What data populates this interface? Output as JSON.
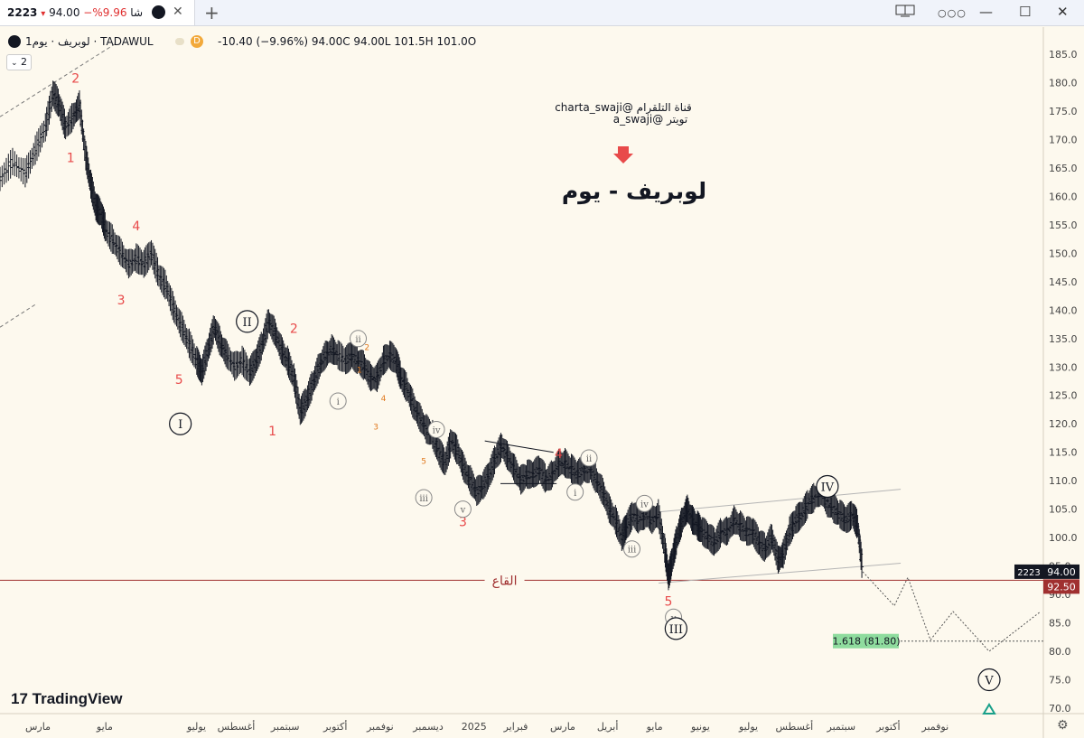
{
  "tab": {
    "title": "شا 9.96%− 94.00 ▾ 2223",
    "pct_label": "9.96%−",
    "price": "94.00",
    "arrow": "▾",
    "code": "2223",
    "prefix": "شا"
  },
  "window": {
    "plus": "+",
    "close_tab": "✕",
    "layout_icon": "layout-icon",
    "more": "○○○",
    "minimize": "—",
    "maximize": "☐",
    "close": "✕"
  },
  "header": {
    "symbol": "لوبريف · يوم1 · TADAWUL",
    "badge": "D",
    "ohlc": "-10.40 (−9.96%) 94.00C 94.00L 101.5H 101.0O",
    "layers": "2"
  },
  "annotations": {
    "channel_line1": "charta_swaji@ قناة التلقرام",
    "channel_line2": "a_swaji@ تويتر",
    "main_title": "لوبريف - يوم",
    "support_label": "القاع",
    "fib_label": "1.618 (81.80)"
  },
  "branding": {
    "logo_text": "TradingView"
  },
  "colors": {
    "accent": "#e84a4a",
    "up": "#131722",
    "support": "#a03030",
    "fib_bg": "#8fdc9e",
    "price_tag": "#131722"
  },
  "chart_data": {
    "type": "line",
    "ylim": [
      70,
      185
    ],
    "yticks": [
      185,
      180,
      175,
      170,
      165,
      160,
      155,
      150,
      145,
      140,
      135,
      130,
      125,
      120,
      115,
      110,
      105,
      100,
      95,
      90,
      85,
      80,
      75,
      70
    ],
    "ytick_labels": [
      "185.0",
      "180.0",
      "175.0",
      "170.0",
      "165.0",
      "160.0",
      "155.0",
      "150.0",
      "145.0",
      "140.0",
      "135.0",
      "130.0",
      "125.0",
      "120.0",
      "115.0",
      "110.0",
      "105.0",
      "100.0",
      "95.0",
      "90.0",
      "85.0",
      "80.0",
      "75.0",
      "70.0"
    ],
    "xtick_labels": [
      "مارس",
      "مايو",
      "يوليو",
      "أغسطس",
      "سبتمبر",
      "أكتوبر",
      "نوفمبر",
      "ديسمبر",
      "2025",
      "فبراير",
      "مارس",
      "أبريل",
      "مايو",
      "يونيو",
      "يوليو",
      "أغسطس",
      "سبتمبر",
      "أكتوبر",
      "نوفمبر"
    ],
    "xtick_pos": [
      0.0,
      0.064,
      0.152,
      0.19,
      0.237,
      0.285,
      0.328,
      0.374,
      0.418,
      0.458,
      0.503,
      0.546,
      0.591,
      0.635,
      0.681,
      0.725,
      0.77,
      0.815,
      0.86
    ],
    "price_path": [
      [
        0.0,
        163
      ],
      [
        0.01,
        166
      ],
      [
        0.02,
        164
      ],
      [
        0.028,
        168
      ],
      [
        0.036,
        172
      ],
      [
        0.042,
        178
      ],
      [
        0.047,
        176
      ],
      [
        0.052,
        172
      ],
      [
        0.058,
        174
      ],
      [
        0.063,
        176
      ],
      [
        0.068,
        167
      ],
      [
        0.072,
        162
      ],
      [
        0.076,
        158
      ],
      [
        0.08,
        157
      ],
      [
        0.084,
        154
      ],
      [
        0.09,
        152
      ],
      [
        0.096,
        150
      ],
      [
        0.102,
        148
      ],
      [
        0.108,
        149
      ],
      [
        0.114,
        148
      ],
      [
        0.12,
        150
      ],
      [
        0.126,
        146
      ],
      [
        0.132,
        144
      ],
      [
        0.138,
        140
      ],
      [
        0.144,
        137
      ],
      [
        0.15,
        134
      ],
      [
        0.156,
        131
      ],
      [
        0.16,
        129
      ],
      [
        0.165,
        133
      ],
      [
        0.17,
        137
      ],
      [
        0.175,
        134
      ],
      [
        0.18,
        132
      ],
      [
        0.186,
        130
      ],
      [
        0.192,
        131
      ],
      [
        0.198,
        129
      ],
      [
        0.203,
        131
      ],
      [
        0.208,
        134
      ],
      [
        0.213,
        138
      ],
      [
        0.218,
        136
      ],
      [
        0.223,
        133
      ],
      [
        0.228,
        131
      ],
      [
        0.233,
        128
      ],
      [
        0.238,
        122
      ],
      [
        0.243,
        124
      ],
      [
        0.248,
        127
      ],
      [
        0.253,
        130
      ],
      [
        0.258,
        132
      ],
      [
        0.263,
        133
      ],
      [
        0.268,
        132
      ],
      [
        0.274,
        131
      ],
      [
        0.279,
        132
      ],
      [
        0.284,
        131
      ],
      [
        0.289,
        130
      ],
      [
        0.294,
        128
      ],
      [
        0.299,
        128
      ],
      [
        0.304,
        131
      ],
      [
        0.309,
        132
      ],
      [
        0.314,
        131
      ],
      [
        0.318,
        128
      ],
      [
        0.323,
        126
      ],
      [
        0.328,
        123
      ],
      [
        0.333,
        121
      ],
      [
        0.338,
        119
      ],
      [
        0.343,
        118
      ],
      [
        0.348,
        115
      ],
      [
        0.353,
        113
      ],
      [
        0.358,
        117
      ],
      [
        0.363,
        115
      ],
      [
        0.368,
        112
      ],
      [
        0.373,
        110
      ],
      [
        0.378,
        108
      ],
      [
        0.383,
        109
      ],
      [
        0.388,
        111
      ],
      [
        0.393,
        114
      ],
      [
        0.398,
        116
      ],
      [
        0.403,
        114
      ],
      [
        0.408,
        112
      ],
      [
        0.413,
        110
      ],
      [
        0.418,
        111
      ],
      [
        0.423,
        111
      ],
      [
        0.428,
        112
      ],
      [
        0.433,
        110
      ],
      [
        0.438,
        111
      ],
      [
        0.443,
        113
      ],
      [
        0.448,
        113
      ],
      [
        0.453,
        112
      ],
      [
        0.458,
        111
      ],
      [
        0.463,
        112
      ],
      [
        0.468,
        112
      ],
      [
        0.473,
        110
      ],
      [
        0.478,
        108
      ],
      [
        0.483,
        105
      ],
      [
        0.488,
        103
      ],
      [
        0.493,
        100
      ],
      [
        0.497,
        102
      ],
      [
        0.502,
        104
      ],
      [
        0.507,
        103
      ],
      [
        0.512,
        104
      ],
      [
        0.517,
        103
      ],
      [
        0.522,
        104
      ],
      [
        0.527,
        98
      ],
      [
        0.53,
        93
      ],
      [
        0.533,
        96
      ],
      [
        0.537,
        100
      ],
      [
        0.541,
        103
      ],
      [
        0.545,
        105
      ],
      [
        0.549,
        103
      ],
      [
        0.553,
        102
      ],
      [
        0.557,
        101
      ],
      [
        0.562,
        100
      ],
      [
        0.567,
        99
      ],
      [
        0.572,
        101
      ],
      [
        0.577,
        101
      ],
      [
        0.582,
        103
      ],
      [
        0.587,
        102
      ],
      [
        0.592,
        101
      ],
      [
        0.597,
        101
      ],
      [
        0.602,
        99
      ],
      [
        0.607,
        98
      ],
      [
        0.612,
        100
      ],
      [
        0.617,
        96
      ],
      [
        0.621,
        97
      ],
      [
        0.626,
        101
      ],
      [
        0.631,
        103
      ],
      [
        0.636,
        104
      ],
      [
        0.641,
        106
      ],
      [
        0.646,
        107
      ],
      [
        0.651,
        108
      ],
      [
        0.656,
        106
      ],
      [
        0.661,
        105
      ],
      [
        0.666,
        104
      ],
      [
        0.671,
        103
      ],
      [
        0.676,
        104
      ],
      [
        0.68,
        102
      ],
      [
        0.684,
        94
      ]
    ],
    "projection": [
      [
        0.684,
        94
      ],
      [
        0.705,
        88
      ],
      [
        0.718,
        93
      ],
      [
        0.735,
        82
      ],
      [
        0.752,
        87
      ],
      [
        0.775,
        80
      ],
      [
        0.82,
        87
      ]
    ],
    "channel_upper": [
      [
        0.523,
        104.5
      ],
      [
        0.71,
        108.5
      ]
    ],
    "channel_lower": [
      [
        0.523,
        92
      ],
      [
        0.71,
        95.5
      ]
    ],
    "triangle_top": [
      [
        0.385,
        117
      ],
      [
        0.437,
        115
      ]
    ],
    "triangle_bottom": [
      [
        0.4,
        109.5
      ],
      [
        0.44,
        109.5
      ]
    ],
    "early_trend_upper": [
      [
        0.0,
        174
      ],
      [
        0.112,
        187
      ]
    ],
    "early_trend_lower": [
      [
        0.0,
        137
      ],
      [
        0.034,
        141
      ]
    ],
    "support_level": 92.5,
    "support_label_pos": 0.41,
    "fib_level": 81.8,
    "fib_start": 0.656,
    "last_price": 94.0,
    "last_price_label": "94.00",
    "support_price_label": "92.50",
    "code_label": "2223",
    "wave_labels_red": [
      {
        "t": "2",
        "x": 0.06,
        "y": 180
      },
      {
        "t": "1",
        "x": 0.056,
        "y": 166
      },
      {
        "t": "4",
        "x": 0.108,
        "y": 154
      },
      {
        "t": "3",
        "x": 0.096,
        "y": 141
      },
      {
        "t": "5",
        "x": 0.142,
        "y": 127
      },
      {
        "t": "2",
        "x": 0.233,
        "y": 136
      },
      {
        "t": "1",
        "x": 0.216,
        "y": 118
      },
      {
        "t": "4",
        "x": 0.443,
        "y": 114
      },
      {
        "t": "3",
        "x": 0.367,
        "y": 102
      },
      {
        "t": "5",
        "x": 0.53,
        "y": 88
      }
    ],
    "wave_labels_orange": [
      {
        "t": "2",
        "x": 0.291,
        "y": 133
      },
      {
        "t": "1",
        "x": 0.285,
        "y": 129
      },
      {
        "t": "4",
        "x": 0.304,
        "y": 124
      },
      {
        "t": "3",
        "x": 0.298,
        "y": 119
      },
      {
        "t": "5",
        "x": 0.336,
        "y": 113
      }
    ],
    "wave_circles_small": [
      {
        "t": "ii",
        "x": 0.284,
        "y": 135
      },
      {
        "t": "i",
        "x": 0.268,
        "y": 124
      },
      {
        "t": "iv",
        "x": 0.346,
        "y": 119
      },
      {
        "t": "iii",
        "x": 0.336,
        "y": 107
      },
      {
        "t": "v",
        "x": 0.367,
        "y": 105
      },
      {
        "t": "ii",
        "x": 0.467,
        "y": 114
      },
      {
        "t": "i",
        "x": 0.456,
        "y": 108
      },
      {
        "t": "iv",
        "x": 0.511,
        "y": 106
      },
      {
        "t": "iii",
        "x": 0.501,
        "y": 98
      },
      {
        "t": "v",
        "x": 0.534,
        "y": 86
      }
    ],
    "wave_circles_big": [
      {
        "t": "II",
        "x": 0.196,
        "y": 138
      },
      {
        "t": "I",
        "x": 0.143,
        "y": 120
      },
      {
        "t": "IV",
        "x": 0.656,
        "y": 109
      },
      {
        "t": "III",
        "x": 0.536,
        "y": 84
      },
      {
        "t": "V",
        "x": 0.786,
        "y": 75
      }
    ]
  }
}
